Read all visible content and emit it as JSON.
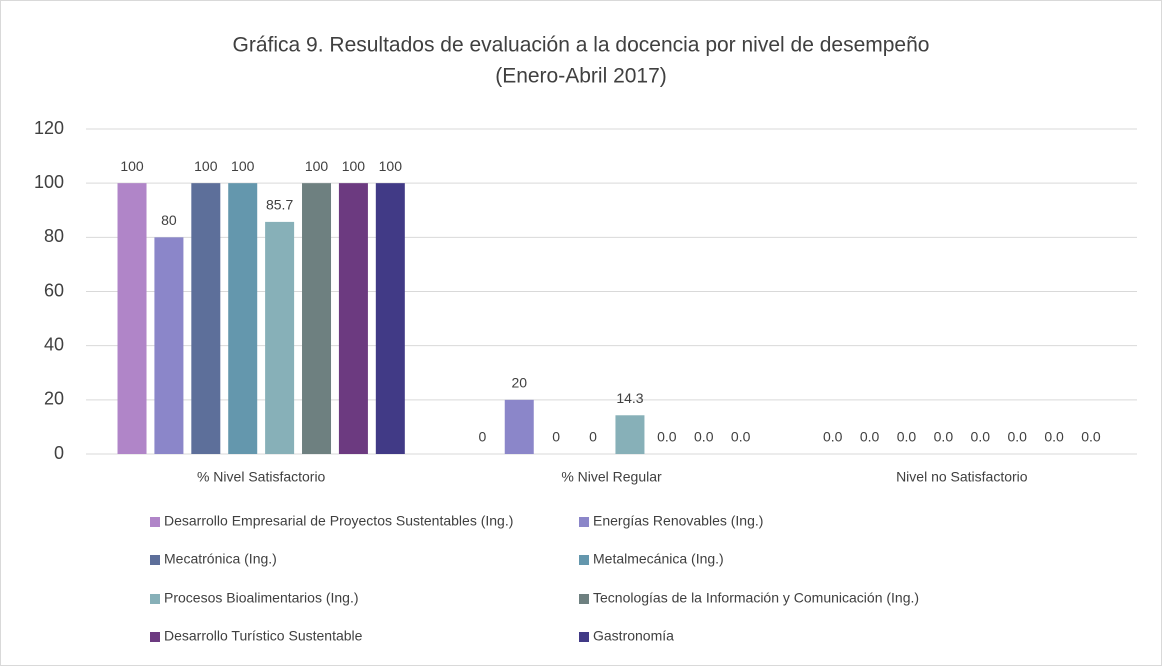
{
  "chart_data": {
    "type": "bar",
    "title": "Gráfica 9. Resultados de evaluación a la docencia por nivel de desempeño",
    "subtitle": "(Enero-Abril 2017)",
    "categories": [
      "% Nivel Satisfactorio",
      "% Nivel Regular",
      "Nivel no Satisfactorio"
    ],
    "series": [
      {
        "name": "Desarrollo Empresarial de Proyectos Sustentables (Ing.)",
        "color": "#b085c8",
        "values": [
          100,
          0,
          0
        ],
        "value_labels": [
          "100",
          "0",
          "0.0"
        ]
      },
      {
        "name": "Energías Renovables (Ing.)",
        "color": "#8b86c9",
        "values": [
          80,
          20,
          0
        ],
        "value_labels": [
          "80",
          "20",
          "0.0"
        ]
      },
      {
        "name": "Mecatrónica (Ing.)",
        "color": "#5d6f9a",
        "values": [
          100,
          0,
          0
        ],
        "value_labels": [
          "100",
          "0",
          "0.0"
        ]
      },
      {
        "name": "Metalmecánica (Ing.)",
        "color": "#6497ad",
        "values": [
          100,
          0,
          0
        ],
        "value_labels": [
          "100",
          "0",
          "0.0"
        ]
      },
      {
        "name": "Procesos Bioalimentarios (Ing.)",
        "color": "#87b0b8",
        "values": [
          85.7,
          14.3,
          0
        ],
        "value_labels": [
          "85.7",
          "14.3",
          "0.0"
        ]
      },
      {
        "name": "Tecnologías de la Información y Comunicación (Ing.)",
        "color": "#6e8080",
        "values": [
          100,
          0,
          0
        ],
        "value_labels": [
          "100",
          "0.0",
          "0.0"
        ]
      },
      {
        "name": "Desarrollo Turístico Sustentable",
        "color": "#6c3a80",
        "values": [
          100,
          0,
          0
        ],
        "value_labels": [
          "100",
          "0.0",
          "0.0"
        ]
      },
      {
        "name": "Gastronomía",
        "color": "#413a86",
        "values": [
          100,
          0,
          0
        ],
        "value_labels": [
          "100",
          "0.0",
          "0.0"
        ]
      }
    ],
    "ylim": [
      0,
      120
    ],
    "yticks": [
      0,
      20,
      40,
      60,
      80,
      100,
      120
    ],
    "grid": true,
    "legend": "bottom"
  }
}
